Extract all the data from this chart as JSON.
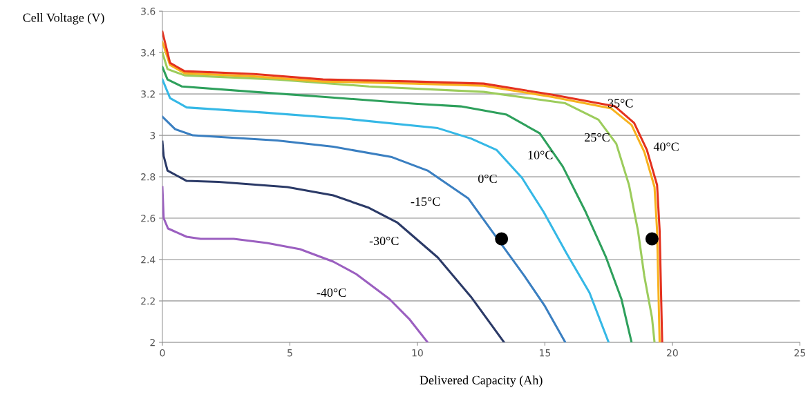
{
  "chart_data": {
    "type": "line",
    "xlabel": "Delivered Capacity (Ah)",
    "ylabel": "Cell Voltage (V)",
    "xlim": [
      0,
      25
    ],
    "xticks": [
      0,
      5,
      10,
      15,
      20,
      25
    ],
    "ylim": [
      2,
      3.6
    ],
    "yticks": [
      2,
      2.2,
      2.4,
      2.6,
      2.8,
      3,
      3.2,
      3.4,
      3.6
    ],
    "grid": "y",
    "marker": "none",
    "line_style": "solid",
    "series": [
      {
        "name": "-40°C",
        "color": "#9b5fc0",
        "x": [
          0,
          0.05,
          0.22,
          0.95,
          1.5,
          2.8,
          4.1,
          5.4,
          6.7,
          7.6,
          8.9,
          9.7,
          10.4
        ],
        "values": [
          2.75,
          2.6,
          2.55,
          2.51,
          2.5,
          2.5,
          2.48,
          2.45,
          2.39,
          2.33,
          2.21,
          2.11,
          2.0
        ]
      },
      {
        "name": "-30°C",
        "color": "#2b3a67",
        "x": [
          0,
          0.05,
          0.2,
          0.95,
          2.2,
          4.9,
          6.7,
          8.1,
          9.2,
          10.8,
          12.1,
          13.4
        ],
        "values": [
          2.97,
          2.9,
          2.83,
          2.78,
          2.775,
          2.75,
          2.71,
          2.65,
          2.58,
          2.41,
          2.22,
          2.0
        ]
      },
      {
        "name": "-15°C",
        "color": "#3a7fc1",
        "x": [
          0,
          0.5,
          1.2,
          4.5,
          6.7,
          9.0,
          10.4,
          12.0,
          14.2,
          15.0,
          15.8
        ],
        "values": [
          3.09,
          3.03,
          3.0,
          2.975,
          2.945,
          2.895,
          2.83,
          2.695,
          2.32,
          2.175,
          2.0
        ]
      },
      {
        "name": "0°C",
        "color": "#35b8e6",
        "x": [
          0,
          0.3,
          0.95,
          4.0,
          7.2,
          10.8,
          12.1,
          13.1,
          14.1,
          14.95,
          15.85,
          16.75,
          17.5
        ],
        "values": [
          3.27,
          3.18,
          3.135,
          3.11,
          3.08,
          3.035,
          2.985,
          2.93,
          2.795,
          2.63,
          2.43,
          2.24,
          2.0
        ]
      },
      {
        "name": "10°C",
        "color": "#2ea05c",
        "x": [
          0,
          0.2,
          0.77,
          3.6,
          6.3,
          9.9,
          11.7,
          13.5,
          14.8,
          15.7,
          16.6,
          17.4,
          18.0,
          18.4
        ],
        "values": [
          3.33,
          3.27,
          3.236,
          3.21,
          3.186,
          3.153,
          3.14,
          3.1,
          3.01,
          2.85,
          2.63,
          2.41,
          2.21,
          2.0
        ]
      },
      {
        "name": "25°C",
        "color": "#9ccc5c",
        "x": [
          0,
          0.2,
          0.87,
          4.5,
          8.1,
          12.6,
          15.8,
          17.1,
          17.8,
          18.3,
          18.65,
          18.9,
          19.2,
          19.3
        ],
        "values": [
          3.4,
          3.32,
          3.29,
          3.27,
          3.236,
          3.21,
          3.155,
          3.076,
          2.96,
          2.76,
          2.54,
          2.32,
          2.12,
          2.0
        ]
      },
      {
        "name": "35°C",
        "color": "#f7b21e",
        "x": [
          0,
          0.3,
          0.87,
          3.6,
          6.3,
          9.9,
          12.6,
          15.3,
          17.6,
          18.4,
          18.9,
          19.3,
          19.4,
          19.5
        ],
        "values": [
          3.45,
          3.34,
          3.3,
          3.285,
          3.26,
          3.25,
          3.24,
          3.185,
          3.13,
          3.05,
          2.92,
          2.75,
          2.54,
          2.0
        ]
      },
      {
        "name": "40°C",
        "color": "#e4321e",
        "x": [
          0,
          0.3,
          0.87,
          3.6,
          6.3,
          9.9,
          12.6,
          15.3,
          17.75,
          18.5,
          19.0,
          19.4,
          19.5,
          19.6
        ],
        "values": [
          3.5,
          3.35,
          3.31,
          3.296,
          3.27,
          3.26,
          3.25,
          3.196,
          3.14,
          3.06,
          2.93,
          2.76,
          2.54,
          2.0
        ]
      },
      {
        "type": "scatter",
        "marker": "circle",
        "color": "#000000",
        "x": [
          13.3,
          19.2
        ],
        "values": [
          2.5,
          2.5
        ]
      }
    ]
  }
}
